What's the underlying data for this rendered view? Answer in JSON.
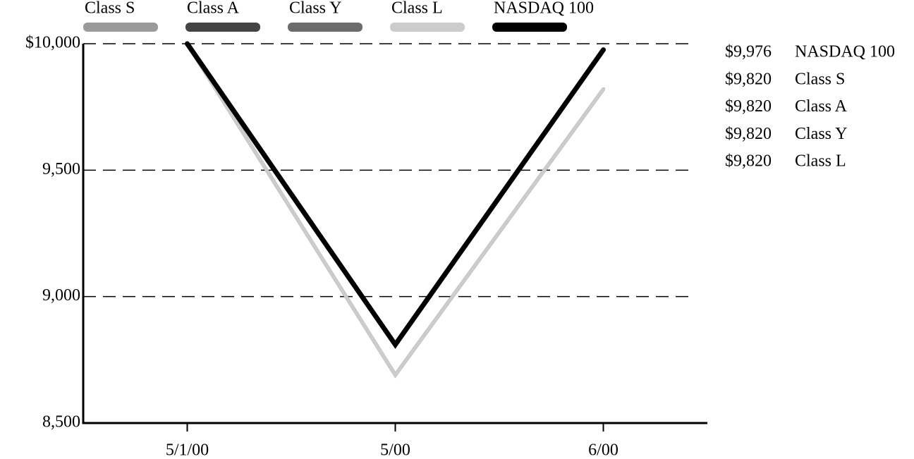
{
  "chart_data": {
    "type": "line",
    "categories": [
      "5/1/00",
      "5/00",
      "6/00"
    ],
    "series": [
      {
        "name": "Class S",
        "color": "#9a9a9a",
        "values": [
          10000,
          8690,
          9820
        ],
        "value_labels": [
          null,
          null,
          "$9,820"
        ]
      },
      {
        "name": "Class A",
        "color": "#444444",
        "values": [
          10000,
          8690,
          9820
        ],
        "value_labels": [
          null,
          null,
          "$9,820"
        ]
      },
      {
        "name": "Class Y",
        "color": "#6c6c6c",
        "values": [
          10000,
          8690,
          9820
        ],
        "value_labels": [
          null,
          null,
          "$9,820"
        ]
      },
      {
        "name": "Class L",
        "color": "#cccccc",
        "values": [
          10000,
          8690,
          9820
        ],
        "value_labels": [
          null,
          null,
          "$9,820"
        ]
      },
      {
        "name": "NASDAQ 100",
        "color": "#000000",
        "values": [
          10000,
          8810,
          9976
        ],
        "value_labels": [
          null,
          null,
          "$9,976"
        ]
      }
    ],
    "ylim": [
      8500,
      10000
    ],
    "yticks": [
      {
        "value": 8500,
        "label": "8,500"
      },
      {
        "value": 9000,
        "label": "9,000"
      },
      {
        "value": 9500,
        "label": "9,500"
      },
      {
        "value": 10000,
        "label": "$10,000"
      }
    ],
    "grid": true
  }
}
